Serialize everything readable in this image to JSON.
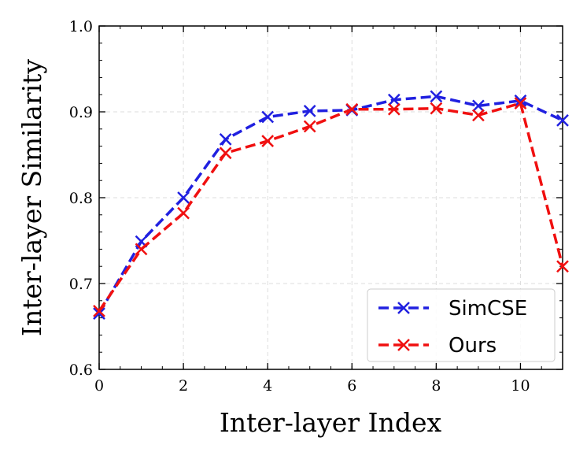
{
  "chart_data": {
    "type": "line",
    "xlabel": "Inter-layer Index",
    "ylabel": "Inter-layer Similarity",
    "x": [
      0,
      1,
      2,
      3,
      4,
      5,
      6,
      7,
      8,
      9,
      10,
      11
    ],
    "series": [
      {
        "name": "SimCSE",
        "color": "#2020e0",
        "values": [
          0.665,
          0.749,
          0.8,
          0.868,
          0.894,
          0.901,
          0.902,
          0.914,
          0.918,
          0.907,
          0.913,
          0.89
        ]
      },
      {
        "name": "Ours",
        "color": "#f01010",
        "values": [
          0.668,
          0.74,
          0.782,
          0.852,
          0.866,
          0.883,
          0.903,
          0.903,
          0.904,
          0.896,
          0.91,
          0.72
        ]
      }
    ],
    "xlim": [
      0,
      11
    ],
    "xticks": [
      0,
      2,
      4,
      6,
      8,
      10
    ],
    "ylim": [
      0.6,
      1.0
    ],
    "yticks": [
      0.6,
      0.7,
      0.8,
      0.9,
      {
        "value": 1.0,
        "label": "1.0"
      }
    ],
    "grid": true,
    "legend": "lower right"
  }
}
